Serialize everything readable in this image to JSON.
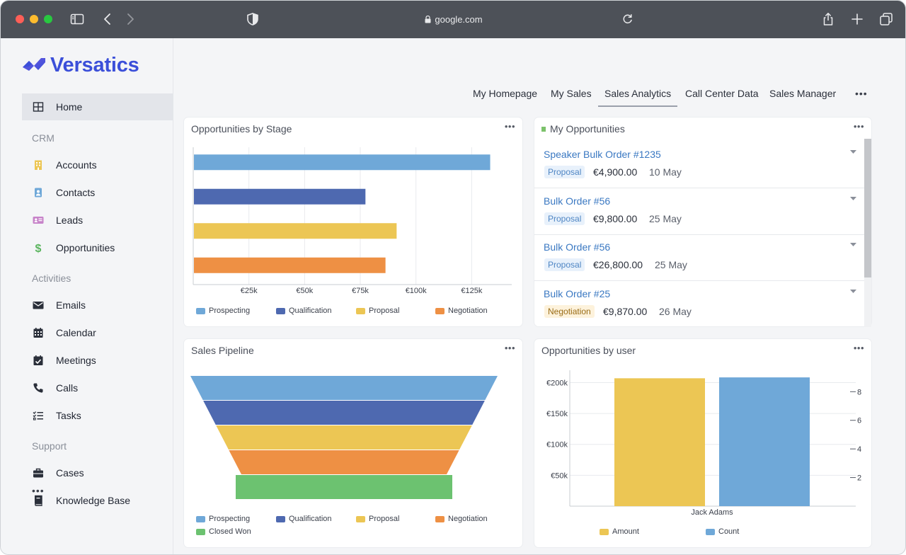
{
  "browser": {
    "url": "google.com"
  },
  "app": {
    "name": "Versatics",
    "brand_color": "#3b4fd9"
  },
  "sidebar": {
    "home": "Home",
    "sections": {
      "crm": "CRM",
      "activities": "Activities",
      "support": "Support"
    },
    "crm_items": [
      {
        "label": "Accounts",
        "icon": "building-icon"
      },
      {
        "label": "Contacts",
        "icon": "contact-card-icon"
      },
      {
        "label": "Leads",
        "icon": "id-card-icon"
      },
      {
        "label": "Opportunities",
        "icon": "dollar-icon"
      }
    ],
    "activity_items": [
      {
        "label": "Emails",
        "icon": "envelope-icon"
      },
      {
        "label": "Calendar",
        "icon": "calendar-icon"
      },
      {
        "label": "Meetings",
        "icon": "calendar-check-icon"
      },
      {
        "label": "Calls",
        "icon": "phone-icon"
      },
      {
        "label": "Tasks",
        "icon": "tasks-icon"
      }
    ],
    "support_items": [
      {
        "label": "Cases",
        "icon": "briefcase-icon"
      },
      {
        "label": "Knowledge Base",
        "icon": "book-icon"
      }
    ],
    "more": "•••"
  },
  "tabs": {
    "items": [
      "My Homepage",
      "My Sales",
      "Sales Analytics",
      "Call Center Data",
      "Sales Manager"
    ],
    "active": "Sales Analytics",
    "more": "•••"
  },
  "colors": {
    "prospecting": "#6fa8d8",
    "qualification": "#4e69b0",
    "proposal": "#ecc654",
    "negotiation": "#ee9044",
    "closed_won": "#6cc270"
  },
  "cards": {
    "stage": {
      "title": "Opportunities by Stage",
      "menu": "•••"
    },
    "my_opps": {
      "title": "My Opportunities",
      "menu": "•••"
    },
    "pipeline": {
      "title": "Sales Pipeline",
      "menu": "•••"
    },
    "by_user": {
      "title": "Opportunities by user",
      "menu": "•••"
    }
  },
  "opportunities": [
    {
      "name": "Speaker Bulk Order #1235",
      "stage": "Proposal",
      "amount": "€4,900.00",
      "date": "10 May"
    },
    {
      "name": "Bulk Order #56",
      "stage": "Proposal",
      "amount": "€9,800.00",
      "date": "25 May"
    },
    {
      "name": "Bulk Order #56",
      "stage": "Proposal",
      "amount": "€26,800.00",
      "date": "25 May"
    },
    {
      "name": "Bulk Order #25",
      "stage": "Negotiation",
      "amount": "€9,870.00",
      "date": "26 May"
    }
  ],
  "chart_data": [
    {
      "type": "bar",
      "orientation": "horizontal",
      "title": "Opportunities by Stage",
      "categories": [
        "Prospecting",
        "Qualification",
        "Proposal",
        "Negotiation"
      ],
      "values": [
        133000,
        77000,
        91000,
        86000
      ],
      "xlim": [
        0,
        143000
      ],
      "xticks": [
        25000,
        50000,
        75000,
        100000,
        125000
      ],
      "xtick_labels": [
        "€25k",
        "€50k",
        "€75k",
        "€100k",
        "€125k"
      ],
      "grid": true,
      "legend": [
        "Prospecting",
        "Qualification",
        "Proposal",
        "Negotiation"
      ],
      "legend_position": "bottom"
    },
    {
      "type": "funnel",
      "title": "Sales Pipeline",
      "stages": [
        "Prospecting",
        "Qualification",
        "Proposal",
        "Negotiation",
        "Closed Won"
      ],
      "legend": [
        "Prospecting",
        "Qualification",
        "Proposal",
        "Negotiation",
        "Closed Won"
      ],
      "legend_position": "bottom"
    },
    {
      "type": "bar",
      "title": "Opportunities by user",
      "categories": [
        "Jack Adams"
      ],
      "series": [
        {
          "name": "Amount",
          "axis": "left",
          "values": [
            207000
          ]
        },
        {
          "name": "Count",
          "axis": "right",
          "values": [
            9
          ]
        }
      ],
      "ylim_left": [
        0,
        220000
      ],
      "yticks_left": [
        50000,
        100000,
        150000,
        200000
      ],
      "ytick_labels_left": [
        "€50k",
        "€100k",
        "€150k",
        "€200k"
      ],
      "ylim_right": [
        0,
        9.5
      ],
      "yticks_right": [
        2,
        4,
        6,
        8
      ],
      "ytick_labels_right": [
        "2",
        "4",
        "6",
        "8"
      ],
      "legend": [
        "Amount",
        "Count"
      ],
      "legend_position": "bottom"
    }
  ]
}
